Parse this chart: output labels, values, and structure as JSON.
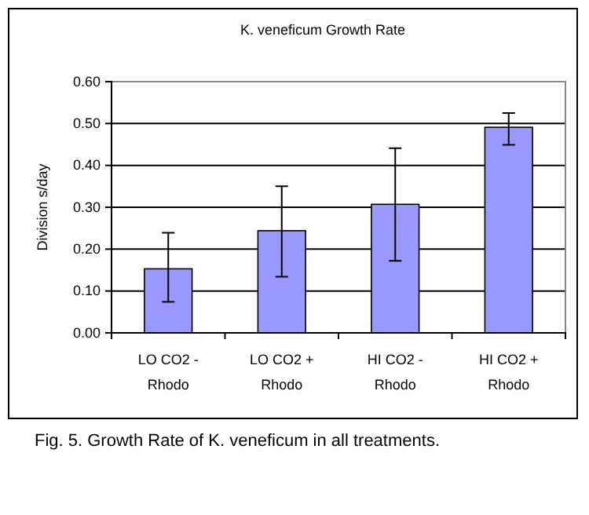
{
  "chart_data": {
    "type": "bar",
    "title": "K. veneficum Growth Rate",
    "ylabel": "Division s/day",
    "categories": [
      "LO CO2 - Rhodo",
      "LO CO2 + Rhodo",
      "HI CO2 - Rhodo",
      "HI CO2 + Rhodo"
    ],
    "values": [
      0.153,
      0.244,
      0.307,
      0.491
    ],
    "color": "#9999ff",
    "errors": [
      [
        0.074,
        0.239
      ],
      [
        0.134,
        0.35
      ],
      [
        0.172,
        0.441
      ],
      [
        0.449,
        0.525
      ]
    ],
    "ylim": [
      0,
      0.6
    ],
    "yticks": [
      {
        "value": 0,
        "label": "0.00"
      },
      {
        "value": 0.1,
        "label": "0.10"
      },
      {
        "value": 0.2,
        "label": "0.20"
      },
      {
        "value": 0.3,
        "label": "0.30"
      },
      {
        "value": 0.4,
        "label": "0.40"
      },
      {
        "value": 0.5,
        "label": "0.50"
      },
      {
        "value": 0.6,
        "label": "0.60"
      }
    ],
    "grid": "y",
    "annotations": [
      "Fig. 5. Growth Rate of K. veneficum in all treatments."
    ]
  }
}
